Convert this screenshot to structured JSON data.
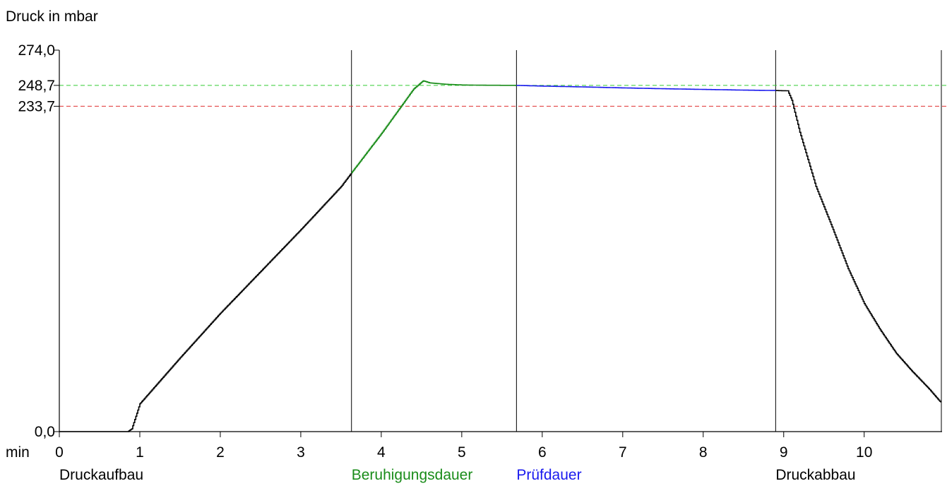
{
  "chart_data": {
    "type": "line",
    "ylabel": "Druck in mbar",
    "xlabel": "min",
    "xlim": [
      0,
      10.95
    ],
    "ylim": [
      0,
      274.0
    ],
    "y_tick_labels": [
      {
        "value": 0,
        "text": "0,0"
      },
      {
        "value": 233.7,
        "text": "233,7"
      },
      {
        "value": 248.7,
        "text": "248,7"
      },
      {
        "value": 274.0,
        "text": "274,0"
      }
    ],
    "x_ticks": [
      0,
      1,
      2,
      3,
      4,
      5,
      6,
      7,
      8,
      9,
      10
    ],
    "x_tick_labels": [
      "0",
      "1",
      "2",
      "3",
      "4",
      "5",
      "6",
      "7",
      "8",
      "9",
      "10"
    ],
    "reference_lines": [
      {
        "value": 248.7,
        "color": "#33cc33",
        "style": "dashed"
      },
      {
        "value": 233.7,
        "color": "#e03030",
        "style": "dashed"
      }
    ],
    "phase_boundaries": [
      3.63,
      5.68,
      8.9
    ],
    "phases": [
      {
        "label": "Druckaufbau",
        "start": 0,
        "color": "#000000"
      },
      {
        "label": "Beruhigungsdauer",
        "start": 3.63,
        "color": "#1a8c1a"
      },
      {
        "label": "Prüfdauer",
        "start": 5.68,
        "color": "#1a1aee"
      },
      {
        "label": "Druckabbau",
        "start": 8.9,
        "color": "#000000"
      }
    ],
    "series": [
      {
        "color": "#000000",
        "x": [
          0,
          0.85,
          0.9,
          0.95,
          1.0,
          1.5,
          2.0,
          2.5,
          3.0,
          3.5,
          3.63
        ],
        "y": [
          0,
          0,
          2,
          11,
          20,
          53,
          85,
          115,
          145,
          176,
          186
        ]
      },
      {
        "color": "#1a8c1a",
        "x": [
          3.63,
          4.0,
          4.2,
          4.4,
          4.52,
          4.6,
          4.8,
          5.0,
          5.3,
          5.68
        ],
        "y": [
          186,
          214,
          230,
          246,
          252,
          250.5,
          249.5,
          249,
          248.8,
          248.7
        ]
      },
      {
        "color": "#1a1aee",
        "x": [
          5.68,
          6.0,
          6.5,
          7.0,
          7.5,
          8.0,
          8.5,
          8.9
        ],
        "y": [
          248.7,
          248.2,
          247.6,
          246.9,
          246.3,
          245.8,
          245.3,
          245.0
        ]
      },
      {
        "color": "#000000",
        "x": [
          8.9,
          9.05,
          9.1,
          9.2,
          9.4,
          9.6,
          9.8,
          10.0,
          10.2,
          10.4,
          10.6,
          10.8,
          10.95
        ],
        "y": [
          245.0,
          244.8,
          238,
          215,
          176,
          147,
          117,
          92,
          73,
          56,
          43,
          31,
          21
        ]
      }
    ]
  }
}
